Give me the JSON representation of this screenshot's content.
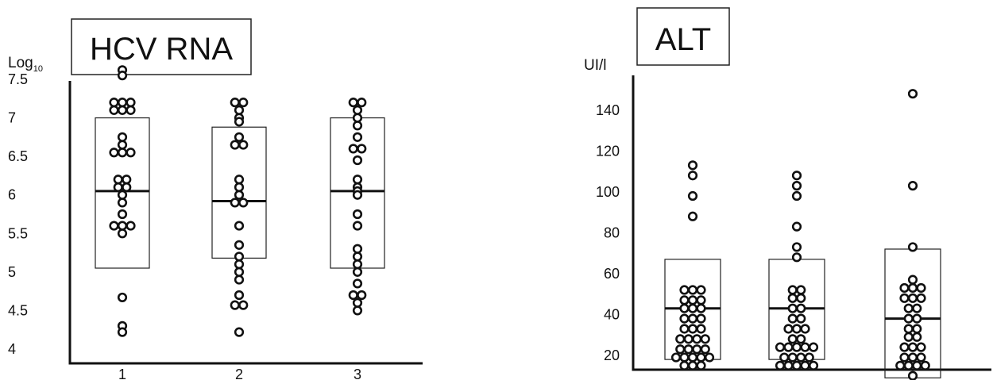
{
  "chart_data": [
    {
      "type": "scatter",
      "title": "HCV RNA",
      "ylabel_prefix": "Log",
      "ylabel_sub": "10",
      "ylim": [
        4,
        7.5
      ],
      "yticks": [
        "4",
        "4.5",
        "5",
        "5.5",
        "6",
        "6.5",
        "7",
        "7.5"
      ],
      "categories": [
        "1",
        "2",
        "3"
      ],
      "series": [
        {
          "box": {
            "q1": 5.05,
            "median": 6.05,
            "q3": 7.0
          },
          "points": [
            7.62,
            7.55,
            7.2,
            7.2,
            7.2,
            7.1,
            7.1,
            7.1,
            6.75,
            6.65,
            6.55,
            6.55,
            6.55,
            6.2,
            6.2,
            6.1,
            6.1,
            6.0,
            5.9,
            5.75,
            5.6,
            5.6,
            5.6,
            5.5,
            4.67,
            4.3,
            4.22
          ]
        },
        {
          "box": {
            "q1": 5.18,
            "median": 5.92,
            "q3": 6.88
          },
          "points": [
            7.2,
            7.2,
            7.1,
            7.0,
            6.95,
            6.75,
            6.65,
            6.65,
            6.2,
            6.1,
            6.0,
            5.9,
            5.9,
            5.6,
            5.35,
            5.2,
            5.1,
            5.0,
            4.9,
            4.7,
            4.57,
            4.57,
            4.22
          ]
        },
        {
          "box": {
            "q1": 5.05,
            "median": 6.05,
            "q3": 7.0
          },
          "points": [
            7.2,
            7.2,
            7.1,
            7.0,
            6.9,
            6.75,
            6.6,
            6.6,
            6.45,
            6.2,
            6.1,
            6.05,
            6.0,
            5.75,
            5.6,
            5.3,
            5.2,
            5.1,
            5.0,
            4.85,
            4.7,
            4.7,
            4.6,
            4.5
          ]
        }
      ]
    },
    {
      "type": "scatter",
      "title": "ALT",
      "ylabel": "UI/l",
      "ylim": [
        13,
        157
      ],
      "yticks": [
        "20",
        "40",
        "60",
        "80",
        "100",
        "120",
        "140"
      ],
      "categories": [
        "",
        "",
        ""
      ],
      "series": [
        {
          "box": {
            "q1": 18,
            "median": 43,
            "q3": 67
          },
          "points": [
            113,
            108,
            98,
            88,
            52,
            52,
            52,
            47,
            47,
            47,
            43,
            43,
            43,
            38,
            38,
            38,
            33,
            33,
            33,
            28,
            28,
            28,
            28,
            23,
            23,
            23,
            23,
            19,
            19,
            19,
            19,
            19,
            15,
            15,
            15
          ]
        },
        {
          "box": {
            "q1": 18,
            "median": 43,
            "q3": 67
          },
          "points": [
            108,
            103,
            98,
            83,
            73,
            68,
            52,
            52,
            48,
            48,
            43,
            43,
            38,
            38,
            33,
            33,
            33,
            28,
            28,
            24,
            24,
            24,
            24,
            24,
            19,
            19,
            19,
            19,
            15,
            15,
            15,
            15,
            15
          ]
        },
        {
          "box": {
            "q1": 9,
            "median": 38,
            "q3": 72
          },
          "points": [
            148,
            103,
            73,
            57,
            53,
            53,
            53,
            48,
            48,
            48,
            43,
            43,
            38,
            38,
            33,
            33,
            29,
            29,
            24,
            24,
            24,
            19,
            19,
            19,
            15,
            15,
            15,
            15,
            10
          ]
        }
      ]
    }
  ]
}
